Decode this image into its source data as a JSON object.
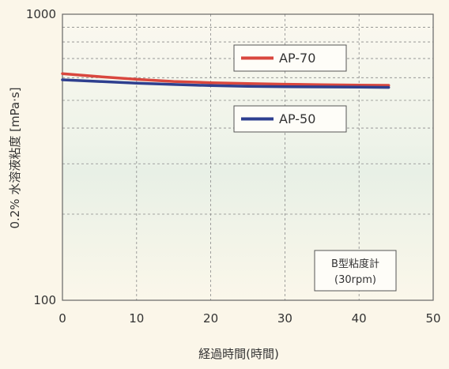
{
  "chart_data": {
    "type": "line",
    "title": "",
    "xlabel": "経過時間(時間)",
    "ylabel": "0.2% 水溶液粘度 [mPa·s]",
    "xlim": [
      0,
      50
    ],
    "ylim": [
      100,
      1000
    ],
    "yscale": "log",
    "grid": true,
    "x_ticks": [
      "0",
      "10",
      "20",
      "30",
      "40",
      "50"
    ],
    "y_ticks": [
      "100",
      "1000"
    ],
    "series": [
      {
        "name": "AP-70",
        "color": "#d9473e",
        "x": [
          0,
          5,
          10,
          15,
          20,
          25,
          30,
          35,
          40,
          44
        ],
        "y": [
          620,
          605,
          592,
          582,
          576,
          572,
          569,
          567,
          565,
          564
        ]
      },
      {
        "name": "AP-50",
        "color": "#2e3f8f",
        "x": [
          0,
          5,
          10,
          15,
          20,
          25,
          30,
          35,
          40,
          44
        ],
        "y": [
          590,
          582,
          574,
          568,
          563,
          560,
          558,
          557,
          556,
          555
        ]
      }
    ],
    "legend": [
      {
        "label": "AP-70",
        "color": "#d9473e"
      },
      {
        "label": "AP-50",
        "color": "#2e3f8f"
      }
    ],
    "note": {
      "line1": "B型粘度計",
      "line2": "(30rpm)"
    }
  }
}
